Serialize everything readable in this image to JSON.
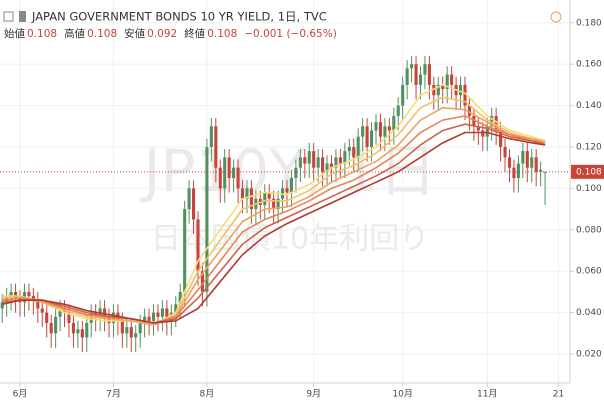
{
  "chart_data": {
    "type": "candlestick",
    "title": "JAPAN GOVERNMENT BONDS 10 YR YIELD, 1日, TVC",
    "ohlc_header": [
      {
        "label": "始値",
        "value": "0.108"
      },
      {
        "label": "高値",
        "value": "0.108"
      },
      {
        "label": "安値",
        "value": "0.092"
      },
      {
        "label": "終値",
        "value": "0.108"
      }
    ],
    "change": "−0.001 (−0.65%)",
    "watermark": "JP10Y, 1日",
    "watermark_sub": "日本国債10年利回り",
    "up_color": "#53905f",
    "down_color": "#c8443a",
    "x": [
      -4,
      -3,
      -2,
      -1,
      0,
      1,
      2,
      3,
      4,
      5,
      6,
      7,
      8,
      9,
      10,
      11,
      12,
      13,
      14,
      15,
      16,
      17,
      18,
      19,
      20,
      21,
      22,
      23,
      24,
      25,
      26,
      27,
      28,
      29,
      30,
      31,
      32,
      33,
      34,
      35,
      36,
      37,
      38,
      39,
      40,
      41,
      42,
      43,
      44,
      45,
      46,
      47,
      48,
      49,
      50,
      51,
      52,
      53,
      54,
      55,
      56,
      57,
      58,
      59,
      60,
      61,
      62,
      63,
      64,
      65,
      66,
      67,
      68,
      69,
      70,
      71,
      72,
      73,
      74,
      75,
      76,
      77,
      78,
      79,
      80,
      81,
      82,
      83,
      84,
      85,
      86,
      87,
      88,
      89,
      90,
      91,
      92,
      93,
      94,
      95,
      96,
      97,
      98,
      99,
      100,
      101,
      102,
      103,
      104,
      105,
      106,
      107,
      108,
      109,
      110,
      111,
      112,
      113,
      114,
      115,
      116,
      117,
      118
    ],
    "open": [
      0.042,
      0.045,
      0.048,
      0.05,
      0.047,
      0.045,
      0.05,
      0.048,
      0.046,
      0.042,
      0.04,
      0.035,
      0.03,
      0.038,
      0.042,
      0.04,
      0.035,
      0.03,
      0.032,
      0.028,
      0.035,
      0.04,
      0.038,
      0.042,
      0.038,
      0.035,
      0.04,
      0.036,
      0.03,
      0.033,
      0.028,
      0.03,
      0.035,
      0.038,
      0.036,
      0.04,
      0.038,
      0.042,
      0.036,
      0.04,
      0.044,
      0.05,
      0.09,
      0.1,
      0.085,
      0.06,
      0.05,
      0.12,
      0.13,
      0.11,
      0.1,
      0.115,
      0.105,
      0.11,
      0.1,
      0.095,
      0.1,
      0.09,
      0.095,
      0.092,
      0.098,
      0.095,
      0.09,
      0.095,
      0.1,
      0.098,
      0.105,
      0.11,
      0.115,
      0.112,
      0.118,
      0.11,
      0.115,
      0.108,
      0.112,
      0.11,
      0.115,
      0.112,
      0.118,
      0.12,
      0.115,
      0.125,
      0.13,
      0.12,
      0.128,
      0.132,
      0.125,
      0.13,
      0.128,
      0.135,
      0.14,
      0.15,
      0.158,
      0.16,
      0.15,
      0.155,
      0.16,
      0.15,
      0.145,
      0.15,
      0.148,
      0.155,
      0.15,
      0.145,
      0.15,
      0.14,
      0.135,
      0.13,
      0.128,
      0.125,
      0.13,
      0.135,
      0.128,
      0.12,
      0.115,
      0.11,
      0.105,
      0.112,
      0.118,
      0.11,
      0.115,
      0.108,
      0.108
    ],
    "high": [
      0.049,
      0.052,
      0.054,
      0.054,
      0.051,
      0.054,
      0.054,
      0.052,
      0.05,
      0.046,
      0.044,
      0.039,
      0.042,
      0.046,
      0.046,
      0.044,
      0.039,
      0.036,
      0.036,
      0.039,
      0.044,
      0.044,
      0.046,
      0.046,
      0.042,
      0.044,
      0.044,
      0.04,
      0.037,
      0.037,
      0.034,
      0.039,
      0.042,
      0.042,
      0.044,
      0.044,
      0.046,
      0.046,
      0.044,
      0.048,
      0.054,
      0.094,
      0.104,
      0.104,
      0.089,
      0.064,
      0.124,
      0.134,
      0.134,
      0.114,
      0.119,
      0.119,
      0.114,
      0.114,
      0.104,
      0.104,
      0.104,
      0.099,
      0.099,
      0.102,
      0.102,
      0.099,
      0.099,
      0.104,
      0.104,
      0.109,
      0.114,
      0.119,
      0.119,
      0.122,
      0.122,
      0.119,
      0.119,
      0.116,
      0.116,
      0.119,
      0.119,
      0.122,
      0.124,
      0.124,
      0.129,
      0.134,
      0.134,
      0.132,
      0.136,
      0.136,
      0.134,
      0.134,
      0.139,
      0.144,
      0.154,
      0.162,
      0.164,
      0.164,
      0.159,
      0.164,
      0.164,
      0.154,
      0.154,
      0.154,
      0.159,
      0.159,
      0.154,
      0.154,
      0.154,
      0.144,
      0.139,
      0.134,
      0.132,
      0.134,
      0.139,
      0.139,
      0.132,
      0.124,
      0.119,
      0.114,
      0.116,
      0.122,
      0.122,
      0.119,
      0.119,
      0.113,
      0.108
    ],
    "low": [
      0.035,
      0.038,
      0.041,
      0.04,
      0.038,
      0.038,
      0.041,
      0.039,
      0.035,
      0.033,
      0.028,
      0.023,
      0.023,
      0.031,
      0.033,
      0.028,
      0.023,
      0.023,
      0.021,
      0.021,
      0.028,
      0.031,
      0.031,
      0.031,
      0.028,
      0.028,
      0.029,
      0.023,
      0.023,
      0.021,
      0.021,
      0.023,
      0.028,
      0.029,
      0.029,
      0.031,
      0.031,
      0.029,
      0.029,
      0.033,
      0.037,
      0.043,
      0.083,
      0.078,
      0.053,
      0.043,
      0.043,
      0.113,
      0.103,
      0.093,
      0.093,
      0.098,
      0.098,
      0.093,
      0.088,
      0.088,
      0.083,
      0.083,
      0.085,
      0.085,
      0.088,
      0.083,
      0.083,
      0.088,
      0.091,
      0.091,
      0.098,
      0.103,
      0.105,
      0.105,
      0.103,
      0.103,
      0.101,
      0.101,
      0.103,
      0.103,
      0.105,
      0.105,
      0.111,
      0.108,
      0.108,
      0.118,
      0.113,
      0.113,
      0.121,
      0.118,
      0.118,
      0.121,
      0.121,
      0.128,
      0.133,
      0.143,
      0.151,
      0.143,
      0.143,
      0.148,
      0.143,
      0.138,
      0.138,
      0.141,
      0.141,
      0.143,
      0.138,
      0.138,
      0.133,
      0.128,
      0.123,
      0.121,
      0.118,
      0.118,
      0.123,
      0.121,
      0.113,
      0.108,
      0.103,
      0.098,
      0.098,
      0.105,
      0.103,
      0.103,
      0.101,
      0.101,
      0.092
    ],
    "close": [
      0.045,
      0.048,
      0.05,
      0.047,
      0.045,
      0.05,
      0.048,
      0.046,
      0.042,
      0.04,
      0.035,
      0.03,
      0.038,
      0.042,
      0.04,
      0.035,
      0.03,
      0.032,
      0.028,
      0.035,
      0.04,
      0.038,
      0.042,
      0.038,
      0.035,
      0.04,
      0.036,
      0.03,
      0.033,
      0.028,
      0.03,
      0.035,
      0.038,
      0.036,
      0.04,
      0.038,
      0.042,
      0.036,
      0.04,
      0.044,
      0.05,
      0.09,
      0.1,
      0.085,
      0.06,
      0.05,
      0.12,
      0.13,
      0.11,
      0.1,
      0.115,
      0.105,
      0.11,
      0.1,
      0.095,
      0.1,
      0.09,
      0.095,
      0.092,
      0.098,
      0.095,
      0.09,
      0.095,
      0.1,
      0.098,
      0.105,
      0.11,
      0.115,
      0.112,
      0.118,
      0.11,
      0.115,
      0.108,
      0.112,
      0.11,
      0.115,
      0.112,
      0.118,
      0.12,
      0.115,
      0.125,
      0.13,
      0.12,
      0.128,
      0.132,
      0.125,
      0.13,
      0.128,
      0.135,
      0.14,
      0.15,
      0.158,
      0.16,
      0.15,
      0.155,
      0.16,
      0.15,
      0.145,
      0.15,
      0.148,
      0.155,
      0.15,
      0.145,
      0.15,
      0.14,
      0.135,
      0.13,
      0.128,
      0.125,
      0.13,
      0.135,
      0.128,
      0.12,
      0.115,
      0.11,
      0.105,
      0.112,
      0.118,
      0.11,
      0.115,
      0.108,
      0.109,
      0.108
    ],
    "ribbon_x": [
      -4,
      0,
      5,
      10,
      15,
      20,
      25,
      30,
      35,
      40,
      45,
      50,
      55,
      60,
      65,
      70,
      75,
      80,
      85,
      90,
      95,
      100,
      105,
      110,
      115,
      118
    ],
    "ribbon": [
      {
        "color": "#f6dc7a",
        "values": [
          0.048,
          0.048,
          0.045,
          0.04,
          0.037,
          0.036,
          0.036,
          0.034,
          0.04,
          0.065,
          0.08,
          0.095,
          0.098,
          0.097,
          0.102,
          0.11,
          0.114,
          0.12,
          0.13,
          0.145,
          0.15,
          0.146,
          0.135,
          0.128,
          0.125,
          0.123
        ]
      },
      {
        "color": "#f3c06a",
        "values": [
          0.047,
          0.048,
          0.045,
          0.041,
          0.038,
          0.037,
          0.036,
          0.034,
          0.039,
          0.06,
          0.075,
          0.09,
          0.094,
          0.094,
          0.099,
          0.107,
          0.111,
          0.117,
          0.126,
          0.139,
          0.144,
          0.142,
          0.133,
          0.127,
          0.124,
          0.123
        ]
      },
      {
        "color": "#eea160",
        "values": [
          0.046,
          0.047,
          0.045,
          0.042,
          0.039,
          0.037,
          0.036,
          0.034,
          0.038,
          0.056,
          0.07,
          0.084,
          0.09,
          0.091,
          0.096,
          0.103,
          0.108,
          0.113,
          0.121,
          0.133,
          0.139,
          0.138,
          0.132,
          0.126,
          0.124,
          0.122
        ]
      },
      {
        "color": "#e58458",
        "values": [
          0.046,
          0.047,
          0.046,
          0.042,
          0.039,
          0.038,
          0.037,
          0.035,
          0.038,
          0.051,
          0.065,
          0.079,
          0.085,
          0.089,
          0.094,
          0.1,
          0.104,
          0.11,
          0.117,
          0.127,
          0.133,
          0.135,
          0.13,
          0.126,
          0.123,
          0.122
        ]
      },
      {
        "color": "#d3614a",
        "values": [
          0.045,
          0.046,
          0.046,
          0.043,
          0.04,
          0.038,
          0.037,
          0.035,
          0.037,
          0.047,
          0.06,
          0.073,
          0.081,
          0.086,
          0.091,
          0.096,
          0.101,
          0.106,
          0.112,
          0.121,
          0.128,
          0.131,
          0.129,
          0.125,
          0.123,
          0.121
        ]
      },
      {
        "color": "#b03a2e",
        "values": [
          0.044,
          0.046,
          0.046,
          0.044,
          0.041,
          0.039,
          0.037,
          0.035,
          0.036,
          0.042,
          0.055,
          0.068,
          0.077,
          0.083,
          0.088,
          0.093,
          0.098,
          0.103,
          0.108,
          0.115,
          0.122,
          0.127,
          0.127,
          0.124,
          0.122,
          0.121
        ]
      }
    ],
    "xlim": [
      -4.5,
      123.6
    ],
    "ylim": [
      0.006,
      0.191
    ],
    "xticks": [
      {
        "value": 0,
        "label": "6月"
      },
      {
        "value": 21,
        "label": "7月"
      },
      {
        "value": 42,
        "label": "8月"
      },
      {
        "value": 66,
        "label": "9月"
      },
      {
        "value": 86,
        "label": "10月"
      },
      {
        "value": 105,
        "label": "11月"
      },
      {
        "value": 121,
        "label": "21"
      }
    ],
    "yticks": [
      {
        "value": 0.02,
        "label": "0.020"
      },
      {
        "value": 0.04,
        "label": "0.040"
      },
      {
        "value": 0.06,
        "label": "0.060"
      },
      {
        "value": 0.08,
        "label": "0.080"
      },
      {
        "value": 0.1,
        "label": "0.100"
      },
      {
        "value": 0.12,
        "label": "0.120"
      },
      {
        "value": 0.14,
        "label": "0.140"
      },
      {
        "value": 0.16,
        "label": "0.160"
      },
      {
        "value": 0.18,
        "label": "0.180"
      }
    ],
    "grid": true,
    "price_line": {
      "value": 0.108,
      "label": "0.108"
    }
  }
}
